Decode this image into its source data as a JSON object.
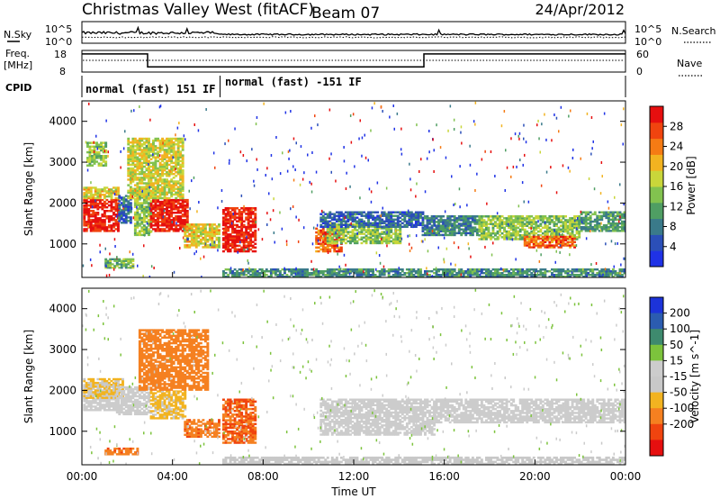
{
  "header": {
    "title": "Christmas Valley West (fitACF)",
    "beam": "Beam 07",
    "date": "24/Apr/2012"
  },
  "params": {
    "nsky_label": "N.Sky",
    "nsearch_label": "N.Search",
    "freq_label_1": "Freq.",
    "freq_label_2": "[MHz]",
    "nave_label": "Nave",
    "cpid_label": "CPID",
    "noise_ticks": [
      "10^5",
      "10^0"
    ],
    "freq_ticks": [
      "18",
      "8"
    ],
    "nave_ticks": [
      "60",
      "0"
    ],
    "cpid_segments": [
      {
        "label": "normal (fast) 151 IF",
        "start_hour": 0,
        "end_hour": 6.1
      },
      {
        "label": "normal (fast) -151 IF",
        "start_hour": 6.1,
        "end_hour": 24
      }
    ],
    "freq_mhz_steps": [
      {
        "start_hour": 0,
        "end_hour": 2.9,
        "value": 17.5
      },
      {
        "start_hour": 2.9,
        "end_hour": 15.1,
        "value": 9.5
      },
      {
        "start_hour": 15.1,
        "end_hour": 24,
        "value": 17.5
      }
    ],
    "colors": {
      "accent": "#000000"
    }
  },
  "chart_data": [
    {
      "type": "heatmap",
      "title": "",
      "xlabel": "Time UT",
      "ylabel": "Slant Range [km]",
      "xlim": [
        0,
        24
      ],
      "ylim": [
        180,
        4500
      ],
      "x_tick_labels": [
        "00:00",
        "04:00",
        "08:00",
        "12:00",
        "16:00",
        "20:00",
        "00:00"
      ],
      "y_tick_labels": [
        "1000",
        "2000",
        "3000",
        "4000"
      ],
      "y_ticks": [
        1000,
        2000,
        3000,
        4000
      ],
      "colorbar": {
        "label": "Power [dB]",
        "ticks": [
          "4",
          "8",
          "12",
          "16",
          "20",
          "24",
          "28"
        ],
        "range": [
          0,
          30
        ],
        "colors": [
          "#1f32e6",
          "#2b4fb8",
          "#3a7a8a",
          "#4f9e63",
          "#82c24f",
          "#c9d63a",
          "#f2b320",
          "#f57b14",
          "#f0440f",
          "#e60f0f"
        ]
      },
      "regions": [
        {
          "t0": 0.05,
          "t1": 1.6,
          "r0": 1300,
          "r1": 2100,
          "level": 28
        },
        {
          "t0": 0.05,
          "t1": 1.6,
          "r0": 2100,
          "r1": 2400,
          "level": 18
        },
        {
          "t0": 1.6,
          "t1": 2.2,
          "r0": 1500,
          "r1": 2200,
          "level": 6
        },
        {
          "t0": 2.3,
          "t1": 3.1,
          "r0": 1200,
          "r1": 2300,
          "level": 14
        },
        {
          "t0": 3.0,
          "t1": 4.6,
          "r0": 1300,
          "r1": 2100,
          "level": 28
        },
        {
          "t0": 4.5,
          "t1": 6.0,
          "r0": 900,
          "r1": 1500,
          "level": 18
        },
        {
          "t0": 2.0,
          "t1": 4.5,
          "r0": 2100,
          "r1": 3600,
          "level": 17
        },
        {
          "t0": 0.2,
          "t1": 1.0,
          "r0": 2900,
          "r1": 3500,
          "level": 14
        },
        {
          "t0": 1.0,
          "t1": 2.3,
          "r0": 400,
          "r1": 650,
          "level": 12
        },
        {
          "t0": 6.2,
          "t1": 7.6,
          "r0": 800,
          "r1": 1900,
          "level": 28
        },
        {
          "t0": 10.3,
          "t1": 11.4,
          "r0": 800,
          "r1": 1400,
          "level": 24
        },
        {
          "t0": 10.8,
          "t1": 14.0,
          "r0": 1000,
          "r1": 1500,
          "level": 14
        },
        {
          "t0": 10.5,
          "t1": 15.0,
          "r0": 1400,
          "r1": 1800,
          "level": 6
        },
        {
          "t0": 15.0,
          "t1": 17.5,
          "r0": 1200,
          "r1": 1700,
          "level": 8
        },
        {
          "t0": 17.5,
          "t1": 22.0,
          "r0": 1100,
          "r1": 1700,
          "level": 14
        },
        {
          "t0": 19.5,
          "t1": 21.8,
          "r0": 900,
          "r1": 1200,
          "level": 24
        },
        {
          "t0": 22.0,
          "t1": 24.0,
          "r0": 1300,
          "r1": 1800,
          "level": 10
        },
        {
          "t0": 6.2,
          "t1": 24.0,
          "r0": 180,
          "r1": 400,
          "level": 9
        }
      ]
    },
    {
      "type": "heatmap",
      "title": "",
      "xlabel": "Time UT",
      "ylabel": "Slant Range [km]",
      "xlim": [
        0,
        24
      ],
      "ylim": [
        180,
        4500
      ],
      "x_tick_labels": [
        "00:00",
        "04:00",
        "08:00",
        "12:00",
        "16:00",
        "20:00",
        "00:00"
      ],
      "y_tick_labels": [
        "1000",
        "2000",
        "3000",
        "4000"
      ],
      "y_ticks": [
        1000,
        2000,
        3000,
        4000
      ],
      "colorbar": {
        "label": "Velocity [m s^-1]",
        "ticks": [
          "200",
          "100",
          "50",
          "15",
          "-15",
          "-50",
          "-100",
          "-200"
        ],
        "range": [
          -250,
          250
        ],
        "colors": [
          "#1c33d9",
          "#2b5cb0",
          "#3e8a6e",
          "#7cc33c",
          "#cccccc",
          "#c8c8c8",
          "#f2b320",
          "#f58020",
          "#f0440f",
          "#e60f0f"
        ]
      },
      "regions": [
        {
          "t0": 0.05,
          "t1": 1.6,
          "r0": 1500,
          "r1": 2200,
          "level": 0
        },
        {
          "t0": 0.05,
          "t1": 1.8,
          "r0": 1800,
          "r1": 2300,
          "level": -60
        },
        {
          "t0": 1.5,
          "t1": 3.0,
          "r0": 1400,
          "r1": 2100,
          "level": 0
        },
        {
          "t0": 3.0,
          "t1": 4.5,
          "r0": 1300,
          "r1": 2000,
          "level": -70
        },
        {
          "t0": 4.5,
          "t1": 6.0,
          "r0": 850,
          "r1": 1300,
          "level": -180
        },
        {
          "t0": 2.5,
          "t1": 5.5,
          "r0": 2000,
          "r1": 3500,
          "level": -150
        },
        {
          "t0": 1.0,
          "t1": 2.5,
          "r0": 420,
          "r1": 600,
          "level": -180
        },
        {
          "t0": 6.2,
          "t1": 7.6,
          "r0": 700,
          "r1": 1800,
          "level": -200
        },
        {
          "t0": 10.5,
          "t1": 15.5,
          "r0": 900,
          "r1": 1800,
          "level": 0
        },
        {
          "t0": 15.5,
          "t1": 24.0,
          "r0": 1200,
          "r1": 1800,
          "level": 0
        },
        {
          "t0": 6.2,
          "t1": 24.0,
          "r0": 180,
          "r1": 380,
          "level": -40
        }
      ]
    }
  ]
}
